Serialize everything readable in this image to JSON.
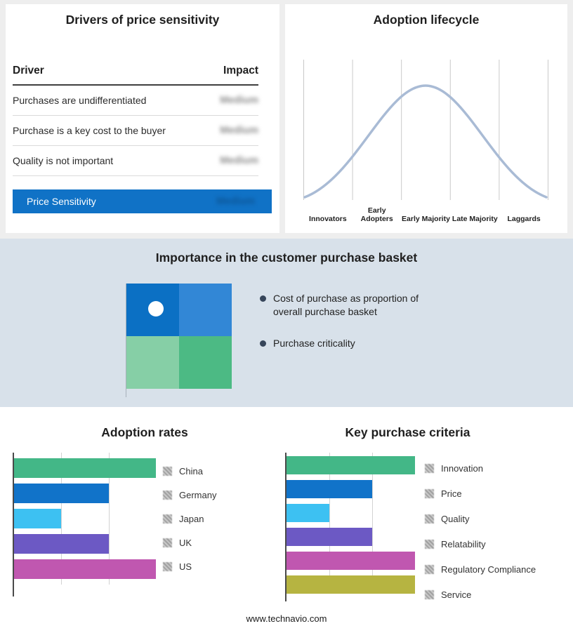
{
  "drivers_panel": {
    "title": "Drivers of price sensitivity",
    "columns": {
      "driver": "Driver",
      "impact": "Impact"
    },
    "rows": [
      {
        "driver": "Purchases are undifferentiated",
        "impact": "Medium"
      },
      {
        "driver": "Purchase is a key cost to the buyer",
        "impact": "Medium"
      },
      {
        "driver": "Quality is not important",
        "impact": "Medium"
      }
    ],
    "summary": {
      "label": "Price Sensitivity",
      "impact": "Medium",
      "bg_color": "#1072c6"
    }
  },
  "basket_panel": {
    "title": "Importance in the customer purchase basket",
    "bullets": [
      "Cost of purchase as proportion of overall purchase basket",
      "Purchase criticality"
    ],
    "quadrant_colors": [
      "#0b70c4",
      "#3287d6",
      "#86cfa6",
      "#4cba84"
    ],
    "band_bg": "#d8e1ea"
  },
  "footer": "www.technavio.com",
  "chart_data": [
    {
      "type": "line",
      "title": "Adoption lifecycle",
      "categories": [
        "Innovators",
        "Early Adopters",
        "Early Majority",
        "Late Majority",
        "Laggards"
      ],
      "shape": "bell curve rising from Innovators, peaking over Early Majority, falling to Laggards",
      "line_color": "#a9bbd5",
      "grid": "vertical category separator lines, no y-axis values"
    },
    {
      "type": "bar",
      "orientation": "horizontal",
      "title": "Adoption rates",
      "categories": [
        "China",
        "Germany",
        "Japan",
        "UK",
        "US"
      ],
      "values": [
        3,
        2,
        1,
        2,
        3
      ],
      "max": 3,
      "colors": [
        "#43b787",
        "#1173c9",
        "#3dc1f2",
        "#6c59c4",
        "#c057b0"
      ],
      "axis_tick_labels": "none shown",
      "legend_position": "right"
    },
    {
      "type": "bar",
      "orientation": "horizontal",
      "title": "Key purchase criteria",
      "categories": [
        "Innovation",
        "Price",
        "Quality",
        "Relatability",
        "Regulatory Compliance",
        "Service"
      ],
      "values": [
        3,
        2,
        1,
        2,
        3,
        3
      ],
      "max": 3,
      "colors": [
        "#43b787",
        "#1173c9",
        "#3dc1f2",
        "#6c59c4",
        "#c057b0",
        "#b6b441"
      ],
      "axis_tick_labels": "none shown",
      "legend_position": "right"
    }
  ]
}
